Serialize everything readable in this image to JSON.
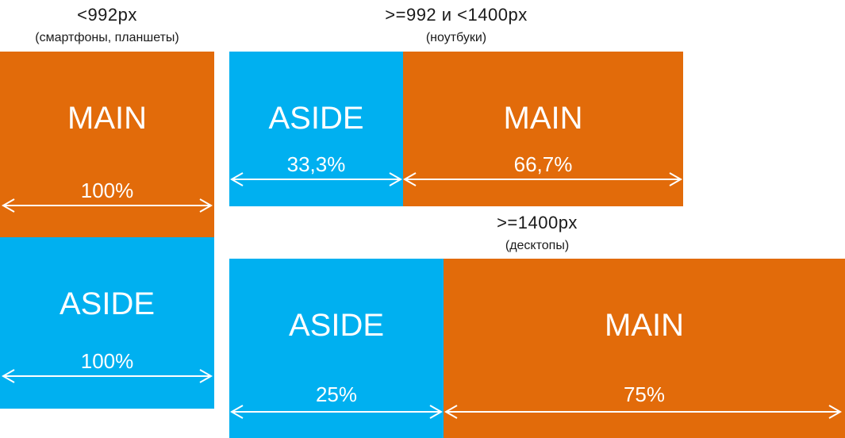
{
  "colors": {
    "main": "#e26b0a",
    "aside": "#00b0f0",
    "arrow": "#ffffff"
  },
  "mobile": {
    "title": "<992px",
    "subtitle": "(смартфоны, планшеты)",
    "main": {
      "label": "MAIN",
      "width": "100%"
    },
    "aside": {
      "label": "ASIDE",
      "width": "100%"
    }
  },
  "laptop": {
    "title": ">=992 и <1400px",
    "subtitle": "(ноутбуки)",
    "aside": {
      "label": "ASIDE",
      "width": "33,3%"
    },
    "main": {
      "label": "MAIN",
      "width": "66,7%"
    }
  },
  "desktop": {
    "title": ">=1400px",
    "subtitle": "(десктопы)",
    "aside": {
      "label": "ASIDE",
      "width": "25%"
    },
    "main": {
      "label": "MAIN",
      "width": "75%"
    }
  },
  "icons": {
    "width_arrow": "double-headed-arrow"
  }
}
